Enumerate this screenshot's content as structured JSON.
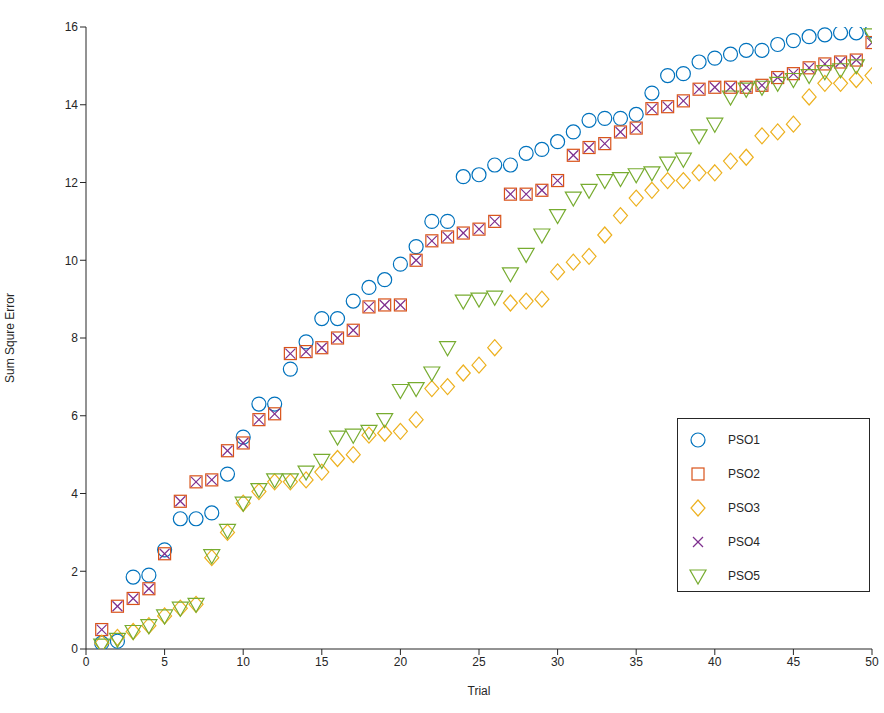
{
  "chart_data": {
    "type": "scatter",
    "x_label": "Trial",
    "y_label": "Sum Squre Error",
    "xlim": [
      0,
      50
    ],
    "xticks": [
      0,
      5,
      10,
      15,
      20,
      25,
      30,
      35,
      40,
      45,
      50
    ],
    "ylim": [
      0,
      16
    ],
    "yticks": [
      0,
      2,
      4,
      6,
      8,
      10,
      12,
      14,
      16
    ],
    "grid": false,
    "legend": "lower right",
    "x": [
      1,
      2,
      3,
      4,
      5,
      6,
      7,
      8,
      9,
      10,
      11,
      12,
      13,
      14,
      15,
      16,
      17,
      18,
      19,
      20,
      21,
      22,
      23,
      24,
      25,
      26,
      27,
      28,
      29,
      30,
      31,
      32,
      33,
      34,
      35,
      36,
      37,
      38,
      39,
      40,
      41,
      42,
      43,
      44,
      45,
      46,
      47,
      48,
      49,
      50
    ],
    "series": [
      {
        "name": "PSO1",
        "color": "#0072BD",
        "marker": "circle",
        "values": [
          0.15,
          0.2,
          1.85,
          1.9,
          2.55,
          3.35,
          3.35,
          3.5,
          4.5,
          5.45,
          6.3,
          6.3,
          7.2,
          7.9,
          8.5,
          8.5,
          8.95,
          9.3,
          9.5,
          9.9,
          10.35,
          11.0,
          11.0,
          12.15,
          12.2,
          12.45,
          12.45,
          12.75,
          12.85,
          13.05,
          13.3,
          13.6,
          13.65,
          13.65,
          13.75,
          14.3,
          14.75,
          14.8,
          15.1,
          15.2,
          15.3,
          15.4,
          15.4,
          15.55,
          15.65,
          15.75,
          15.8,
          15.85,
          15.85,
          15.9
        ]
      },
      {
        "name": "PSO2",
        "color": "#D95319",
        "marker": "square",
        "values": [
          0.5,
          1.1,
          1.3,
          1.55,
          2.45,
          3.8,
          4.3,
          4.35,
          5.1,
          5.3,
          5.9,
          6.05,
          7.6,
          7.65,
          7.75,
          8.0,
          8.2,
          8.8,
          8.85,
          8.85,
          10.0,
          10.5,
          10.6,
          10.7,
          10.8,
          11.0,
          11.7,
          11.7,
          11.8,
          12.05,
          12.7,
          12.9,
          13.0,
          13.3,
          13.4,
          13.9,
          13.95,
          14.1,
          14.4,
          14.45,
          14.45,
          14.45,
          14.5,
          14.7,
          14.8,
          14.95,
          15.05,
          15.1,
          15.15,
          15.6
        ]
      },
      {
        "name": "PSO3",
        "color": "#EDB120",
        "marker": "diamond",
        "values": [
          0.15,
          0.3,
          0.45,
          0.6,
          0.85,
          1.05,
          1.15,
          2.35,
          3.0,
          3.75,
          4.05,
          4.3,
          4.3,
          4.35,
          4.55,
          4.9,
          5.0,
          5.5,
          5.55,
          5.6,
          5.9,
          6.7,
          6.75,
          7.1,
          7.3,
          7.75,
          8.9,
          8.95,
          9.0,
          9.7,
          9.95,
          10.1,
          10.65,
          11.15,
          11.6,
          11.8,
          12.05,
          12.05,
          12.25,
          12.25,
          12.55,
          12.65,
          13.2,
          13.3,
          13.5,
          14.2,
          14.55,
          14.55,
          14.65,
          14.75
        ]
      },
      {
        "name": "PSO4",
        "color": "#7E2F8E",
        "marker": "x",
        "values": [
          0.5,
          1.1,
          1.3,
          1.55,
          2.45,
          3.8,
          4.3,
          4.35,
          5.1,
          5.3,
          5.9,
          6.05,
          7.6,
          7.65,
          7.75,
          8.0,
          8.2,
          8.8,
          8.85,
          8.85,
          10.0,
          10.5,
          10.6,
          10.7,
          10.8,
          11.0,
          11.7,
          11.7,
          11.8,
          12.05,
          12.7,
          12.9,
          13.0,
          13.3,
          13.4,
          13.9,
          13.95,
          14.1,
          14.4,
          14.45,
          14.45,
          14.45,
          14.5,
          14.7,
          14.8,
          14.95,
          15.05,
          15.1,
          15.15,
          15.6
        ]
      },
      {
        "name": "PSO5",
        "color": "#77AC30",
        "marker": "triangle_down",
        "values": [
          0.1,
          0.25,
          0.45,
          0.6,
          0.85,
          1.05,
          1.15,
          2.4,
          3.05,
          3.75,
          4.1,
          4.35,
          4.35,
          4.55,
          4.85,
          5.45,
          5.5,
          5.6,
          5.9,
          6.65,
          6.7,
          7.1,
          7.75,
          8.95,
          9.0,
          9.05,
          9.65,
          10.15,
          10.65,
          11.15,
          11.6,
          11.8,
          12.05,
          12.1,
          12.2,
          12.25,
          12.5,
          12.6,
          13.2,
          13.5,
          14.2,
          14.4,
          14.45,
          14.55,
          14.65,
          14.75,
          14.85,
          14.9,
          15.0,
          15.8
        ]
      }
    ]
  }
}
